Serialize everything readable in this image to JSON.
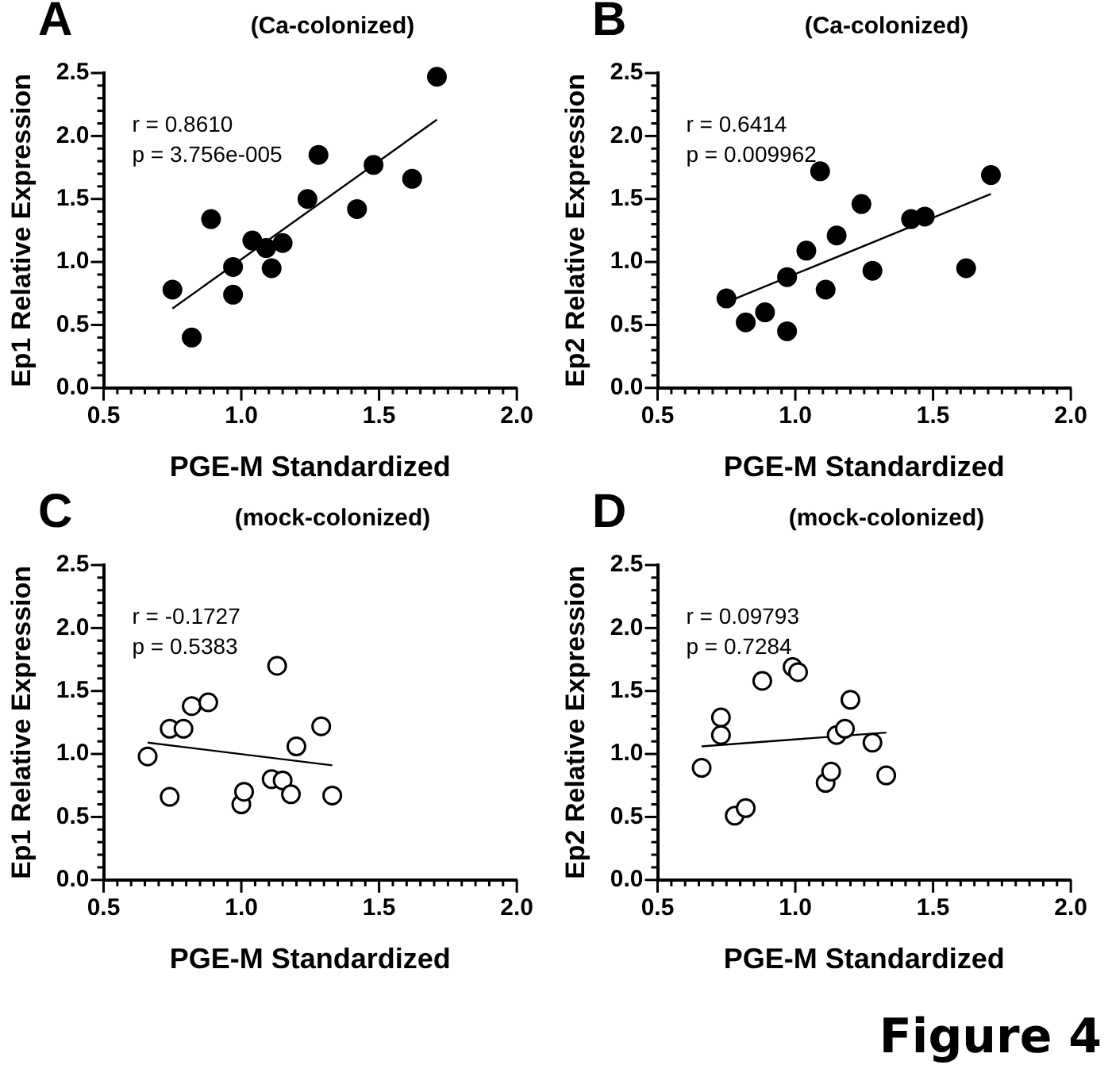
{
  "chart_data": [
    {
      "type": "scatter",
      "title": "A",
      "subtitle": "(Ca-colonized)",
      "xlabel": "PGE-M Standardized",
      "ylabel": "Ep1 Relative Expression",
      "marker": "circle",
      "legend": false,
      "annotations": [
        "r = 0.8610",
        "p = 3.756e-005"
      ],
      "xlim": [
        0.5,
        2.0
      ],
      "ylim": [
        0,
        2.5
      ],
      "xticks": [
        {
          "value": 0.5,
          "label": "0.5"
        },
        {
          "value": 0.55,
          "label": null
        },
        {
          "value": 0.6,
          "label": null
        },
        {
          "value": 0.65,
          "label": null
        },
        {
          "value": 0.7,
          "label": null
        },
        {
          "value": 0.75,
          "label": null
        },
        {
          "value": 0.8,
          "label": null
        },
        {
          "value": 0.85,
          "label": null
        },
        {
          "value": 0.9,
          "label": null
        },
        {
          "value": 0.95,
          "label": null
        },
        {
          "value": 1.0,
          "label": "1.0"
        },
        {
          "value": 1.05,
          "label": null
        },
        {
          "value": 1.1,
          "label": null
        },
        {
          "value": 1.15,
          "label": null
        },
        {
          "value": 1.2,
          "label": null
        },
        {
          "value": 1.25,
          "label": null
        },
        {
          "value": 1.3,
          "label": null
        },
        {
          "value": 1.35,
          "label": null
        },
        {
          "value": 1.4,
          "label": null
        },
        {
          "value": 1.45,
          "label": null
        },
        {
          "value": 1.5,
          "label": "1.5"
        },
        {
          "value": 1.55,
          "label": null
        },
        {
          "value": 1.6,
          "label": null
        },
        {
          "value": 1.65,
          "label": null
        },
        {
          "value": 1.7,
          "label": null
        },
        {
          "value": 1.75,
          "label": null
        },
        {
          "value": 1.8,
          "label": null
        },
        {
          "value": 1.85,
          "label": null
        },
        {
          "value": 1.9,
          "label": null
        },
        {
          "value": 1.95,
          "label": null
        },
        {
          "value": 2.0,
          "label": "2.0"
        }
      ],
      "yticks": [
        {
          "value": 0,
          "label": "0.0"
        },
        {
          "value": 0.1,
          "label": null
        },
        {
          "value": 0.2,
          "label": null
        },
        {
          "value": 0.3,
          "label": null
        },
        {
          "value": 0.4,
          "label": null
        },
        {
          "value": 0.5,
          "label": "0.5"
        },
        {
          "value": 0.6,
          "label": null
        },
        {
          "value": 0.7,
          "label": null
        },
        {
          "value": 0.8,
          "label": null
        },
        {
          "value": 0.9,
          "label": null
        },
        {
          "value": 1.0,
          "label": "1.0"
        },
        {
          "value": 1.1,
          "label": null
        },
        {
          "value": 1.2,
          "label": null
        },
        {
          "value": 1.3,
          "label": null
        },
        {
          "value": 1.4,
          "label": null
        },
        {
          "value": 1.5,
          "label": "1.5"
        },
        {
          "value": 1.6,
          "label": null
        },
        {
          "value": 1.7,
          "label": null
        },
        {
          "value": 1.8,
          "label": null
        },
        {
          "value": 1.9,
          "label": null
        },
        {
          "value": 2.0,
          "label": "2.0"
        },
        {
          "value": 2.1,
          "label": null
        },
        {
          "value": 2.2,
          "label": null
        },
        {
          "value": 2.3,
          "label": null
        },
        {
          "value": 2.4,
          "label": null
        },
        {
          "value": 2.5,
          "label": "2.5"
        }
      ],
      "series": [
        {
          "color": "#000000",
          "x": [
            0.75,
            0.82,
            0.89,
            0.97,
            0.97,
            1.04,
            1.09,
            1.11,
            1.15,
            1.24,
            1.28,
            1.42,
            1.48,
            1.62,
            1.71
          ],
          "values": [
            0.78,
            0.4,
            1.34,
            0.96,
            0.74,
            1.17,
            1.11,
            0.95,
            1.15,
            1.5,
            1.85,
            1.42,
            1.77,
            1.66,
            2.47
          ]
        },
        {
          "type": "line",
          "color": "#000000",
          "marker": "none",
          "x": [
            0.75,
            1.71
          ],
          "values": [
            0.63,
            2.13
          ]
        }
      ]
    },
    {
      "type": "scatter",
      "title": "B",
      "subtitle": "(Ca-colonized)",
      "xlabel": "PGE-M Standardized",
      "ylabel": "Ep2 Relative Expression",
      "marker": "circle",
      "legend": false,
      "annotations": [
        "r = 0.6414",
        "p = 0.009962"
      ],
      "xlim": [
        0.5,
        2.0
      ],
      "ylim": [
        0,
        2.5
      ],
      "xticks": [
        {
          "value": 0.5,
          "label": "0.5"
        },
        {
          "value": 0.55,
          "label": null
        },
        {
          "value": 0.6,
          "label": null
        },
        {
          "value": 0.65,
          "label": null
        },
        {
          "value": 0.7,
          "label": null
        },
        {
          "value": 0.75,
          "label": null
        },
        {
          "value": 0.8,
          "label": null
        },
        {
          "value": 0.85,
          "label": null
        },
        {
          "value": 0.9,
          "label": null
        },
        {
          "value": 0.95,
          "label": null
        },
        {
          "value": 1.0,
          "label": "1.0"
        },
        {
          "value": 1.05,
          "label": null
        },
        {
          "value": 1.1,
          "label": null
        },
        {
          "value": 1.15,
          "label": null
        },
        {
          "value": 1.2,
          "label": null
        },
        {
          "value": 1.25,
          "label": null
        },
        {
          "value": 1.3,
          "label": null
        },
        {
          "value": 1.35,
          "label": null
        },
        {
          "value": 1.4,
          "label": null
        },
        {
          "value": 1.45,
          "label": null
        },
        {
          "value": 1.5,
          "label": "1.5"
        },
        {
          "value": 1.55,
          "label": null
        },
        {
          "value": 1.6,
          "label": null
        },
        {
          "value": 1.65,
          "label": null
        },
        {
          "value": 1.7,
          "label": null
        },
        {
          "value": 1.75,
          "label": null
        },
        {
          "value": 1.8,
          "label": null
        },
        {
          "value": 1.85,
          "label": null
        },
        {
          "value": 1.9,
          "label": null
        },
        {
          "value": 1.95,
          "label": null
        },
        {
          "value": 2.0,
          "label": "2.0"
        }
      ],
      "yticks": [
        {
          "value": 0,
          "label": "0.0"
        },
        {
          "value": 0.1,
          "label": null
        },
        {
          "value": 0.2,
          "label": null
        },
        {
          "value": 0.3,
          "label": null
        },
        {
          "value": 0.4,
          "label": null
        },
        {
          "value": 0.5,
          "label": "0.5"
        },
        {
          "value": 0.6,
          "label": null
        },
        {
          "value": 0.7,
          "label": null
        },
        {
          "value": 0.8,
          "label": null
        },
        {
          "value": 0.9,
          "label": null
        },
        {
          "value": 1.0,
          "label": "1.0"
        },
        {
          "value": 1.1,
          "label": null
        },
        {
          "value": 1.2,
          "label": null
        },
        {
          "value": 1.3,
          "label": null
        },
        {
          "value": 1.4,
          "label": null
        },
        {
          "value": 1.5,
          "label": "1.5"
        },
        {
          "value": 1.6,
          "label": null
        },
        {
          "value": 1.7,
          "label": null
        },
        {
          "value": 1.8,
          "label": null
        },
        {
          "value": 1.9,
          "label": null
        },
        {
          "value": 2.0,
          "label": "2.0"
        },
        {
          "value": 2.1,
          "label": null
        },
        {
          "value": 2.2,
          "label": null
        },
        {
          "value": 2.3,
          "label": null
        },
        {
          "value": 2.4,
          "label": null
        },
        {
          "value": 2.5,
          "label": "2.5"
        }
      ],
      "series": [
        {
          "color": "#000000",
          "x": [
            0.75,
            0.82,
            0.89,
            0.97,
            0.97,
            1.04,
            1.09,
            1.11,
            1.15,
            1.24,
            1.28,
            1.42,
            1.47,
            1.62,
            1.71
          ],
          "values": [
            0.71,
            0.52,
            0.6,
            0.45,
            0.88,
            1.09,
            1.72,
            0.78,
            1.21,
            1.46,
            0.93,
            1.34,
            1.36,
            0.95,
            1.69
          ]
        },
        {
          "type": "line",
          "color": "#000000",
          "marker": "none",
          "x": [
            0.75,
            1.71
          ],
          "values": [
            0.68,
            1.54
          ]
        }
      ]
    },
    {
      "type": "scatter",
      "title": "C",
      "subtitle": "(mock-colonized)",
      "xlabel": "PGE-M Standardized",
      "ylabel": "Ep1 Relative Expression",
      "marker": "circle",
      "legend": false,
      "annotations": [
        "r = -0.1727",
        "p = 0.5383"
      ],
      "xlim": [
        0.5,
        2.0
      ],
      "ylim": [
        0,
        2.5
      ],
      "xticks": [
        {
          "value": 0.5,
          "label": "0.5"
        },
        {
          "value": 0.55,
          "label": null
        },
        {
          "value": 0.6,
          "label": null
        },
        {
          "value": 0.65,
          "label": null
        },
        {
          "value": 0.7,
          "label": null
        },
        {
          "value": 0.75,
          "label": null
        },
        {
          "value": 0.8,
          "label": null
        },
        {
          "value": 0.85,
          "label": null
        },
        {
          "value": 0.9,
          "label": null
        },
        {
          "value": 0.95,
          "label": null
        },
        {
          "value": 1.0,
          "label": "1.0"
        },
        {
          "value": 1.05,
          "label": null
        },
        {
          "value": 1.1,
          "label": null
        },
        {
          "value": 1.15,
          "label": null
        },
        {
          "value": 1.2,
          "label": null
        },
        {
          "value": 1.25,
          "label": null
        },
        {
          "value": 1.3,
          "label": null
        },
        {
          "value": 1.35,
          "label": null
        },
        {
          "value": 1.4,
          "label": null
        },
        {
          "value": 1.45,
          "label": null
        },
        {
          "value": 1.5,
          "label": "1.5"
        },
        {
          "value": 1.55,
          "label": null
        },
        {
          "value": 1.6,
          "label": null
        },
        {
          "value": 1.65,
          "label": null
        },
        {
          "value": 1.7,
          "label": null
        },
        {
          "value": 1.75,
          "label": null
        },
        {
          "value": 1.8,
          "label": null
        },
        {
          "value": 1.85,
          "label": null
        },
        {
          "value": 1.9,
          "label": null
        },
        {
          "value": 1.95,
          "label": null
        },
        {
          "value": 2.0,
          "label": "2.0"
        }
      ],
      "yticks": [
        {
          "value": 0,
          "label": "0.0"
        },
        {
          "value": 0.1,
          "label": null
        },
        {
          "value": 0.2,
          "label": null
        },
        {
          "value": 0.3,
          "label": null
        },
        {
          "value": 0.4,
          "label": null
        },
        {
          "value": 0.5,
          "label": "0.5"
        },
        {
          "value": 0.6,
          "label": null
        },
        {
          "value": 0.7,
          "label": null
        },
        {
          "value": 0.8,
          "label": null
        },
        {
          "value": 0.9,
          "label": null
        },
        {
          "value": 1.0,
          "label": "1.0"
        },
        {
          "value": 1.1,
          "label": null
        },
        {
          "value": 1.2,
          "label": null
        },
        {
          "value": 1.3,
          "label": null
        },
        {
          "value": 1.4,
          "label": null
        },
        {
          "value": 1.5,
          "label": "1.5"
        },
        {
          "value": 1.6,
          "label": null
        },
        {
          "value": 1.7,
          "label": null
        },
        {
          "value": 1.8,
          "label": null
        },
        {
          "value": 1.9,
          "label": null
        },
        {
          "value": 2.0,
          "label": "2.0"
        },
        {
          "value": 2.1,
          "label": null
        },
        {
          "value": 2.2,
          "label": null
        },
        {
          "value": 2.3,
          "label": null
        },
        {
          "value": 2.4,
          "label": null
        },
        {
          "value": 2.5,
          "label": "2.5"
        }
      ],
      "series": [
        {
          "color": "#ffffff",
          "x": [
            0.66,
            0.74,
            0.74,
            0.79,
            0.82,
            0.88,
            1.0,
            1.01,
            1.11,
            1.15,
            1.13,
            1.18,
            1.2,
            1.29,
            1.33
          ],
          "values": [
            0.98,
            0.66,
            1.2,
            1.2,
            1.38,
            1.41,
            0.6,
            0.7,
            0.8,
            0.79,
            1.7,
            0.68,
            1.06,
            1.22,
            0.67
          ]
        },
        {
          "type": "line",
          "color": "#000000",
          "marker": "none",
          "x": [
            0.66,
            1.33
          ],
          "values": [
            1.09,
            0.91
          ]
        }
      ]
    },
    {
      "type": "scatter",
      "title": "D",
      "subtitle": "(mock-colonized)",
      "xlabel": "PGE-M Standardized",
      "ylabel": "Ep2 Relative Expression",
      "marker": "circle",
      "legend": false,
      "annotations": [
        "r = 0.09793",
        "p = 0.7284",
        "Figure 4"
      ],
      "xlim": [
        0.5,
        2.0
      ],
      "ylim": [
        0,
        2.5
      ],
      "xticks": [
        {
          "value": 0.5,
          "label": "0.5"
        },
        {
          "value": 0.55,
          "label": null
        },
        {
          "value": 0.6,
          "label": null
        },
        {
          "value": 0.65,
          "label": null
        },
        {
          "value": 0.7,
          "label": null
        },
        {
          "value": 0.75,
          "label": null
        },
        {
          "value": 0.8,
          "label": null
        },
        {
          "value": 0.85,
          "label": null
        },
        {
          "value": 0.9,
          "label": null
        },
        {
          "value": 0.95,
          "label": null
        },
        {
          "value": 1.0,
          "label": "1.0"
        },
        {
          "value": 1.05,
          "label": null
        },
        {
          "value": 1.1,
          "label": null
        },
        {
          "value": 1.15,
          "label": null
        },
        {
          "value": 1.2,
          "label": null
        },
        {
          "value": 1.25,
          "label": null
        },
        {
          "value": 1.3,
          "label": null
        },
        {
          "value": 1.35,
          "label": null
        },
        {
          "value": 1.4,
          "label": null
        },
        {
          "value": 1.45,
          "label": null
        },
        {
          "value": 1.5,
          "label": "1.5"
        },
        {
          "value": 1.55,
          "label": null
        },
        {
          "value": 1.6,
          "label": null
        },
        {
          "value": 1.65,
          "label": null
        },
        {
          "value": 1.7,
          "label": null
        },
        {
          "value": 1.75,
          "label": null
        },
        {
          "value": 1.8,
          "label": null
        },
        {
          "value": 1.85,
          "label": null
        },
        {
          "value": 1.9,
          "label": null
        },
        {
          "value": 1.95,
          "label": null
        },
        {
          "value": 2.0,
          "label": "2.0"
        }
      ],
      "yticks": [
        {
          "value": 0,
          "label": "0.0"
        },
        {
          "value": 0.1,
          "label": null
        },
        {
          "value": 0.2,
          "label": null
        },
        {
          "value": 0.3,
          "label": null
        },
        {
          "value": 0.4,
          "label": null
        },
        {
          "value": 0.5,
          "label": "0.5"
        },
        {
          "value": 0.6,
          "label": null
        },
        {
          "value": 0.7,
          "label": null
        },
        {
          "value": 0.8,
          "label": null
        },
        {
          "value": 0.9,
          "label": null
        },
        {
          "value": 1.0,
          "label": "1.0"
        },
        {
          "value": 1.1,
          "label": null
        },
        {
          "value": 1.2,
          "label": null
        },
        {
          "value": 1.3,
          "label": null
        },
        {
          "value": 1.4,
          "label": null
        },
        {
          "value": 1.5,
          "label": "1.5"
        },
        {
          "value": 1.6,
          "label": null
        },
        {
          "value": 1.7,
          "label": null
        },
        {
          "value": 1.8,
          "label": null
        },
        {
          "value": 1.9,
          "label": null
        },
        {
          "value": 2.0,
          "label": "2.0"
        },
        {
          "value": 2.1,
          "label": null
        },
        {
          "value": 2.2,
          "label": null
        },
        {
          "value": 2.3,
          "label": null
        },
        {
          "value": 2.4,
          "label": null
        },
        {
          "value": 2.5,
          "label": "2.5"
        }
      ],
      "series": [
        {
          "color": "#ffffff",
          "x": [
            0.66,
            0.73,
            0.73,
            0.78,
            0.82,
            0.88,
            0.99,
            1.01,
            1.11,
            1.13,
            1.15,
            1.18,
            1.2,
            1.28,
            1.33
          ],
          "values": [
            0.89,
            1.29,
            1.15,
            0.51,
            0.57,
            1.58,
            1.69,
            1.65,
            0.77,
            0.86,
            1.15,
            1.2,
            1.43,
            1.09,
            0.83
          ]
        },
        {
          "type": "line",
          "color": "#000000",
          "marker": "none",
          "x": [
            0.66,
            1.33
          ],
          "values": [
            1.06,
            1.17
          ]
        }
      ]
    }
  ]
}
